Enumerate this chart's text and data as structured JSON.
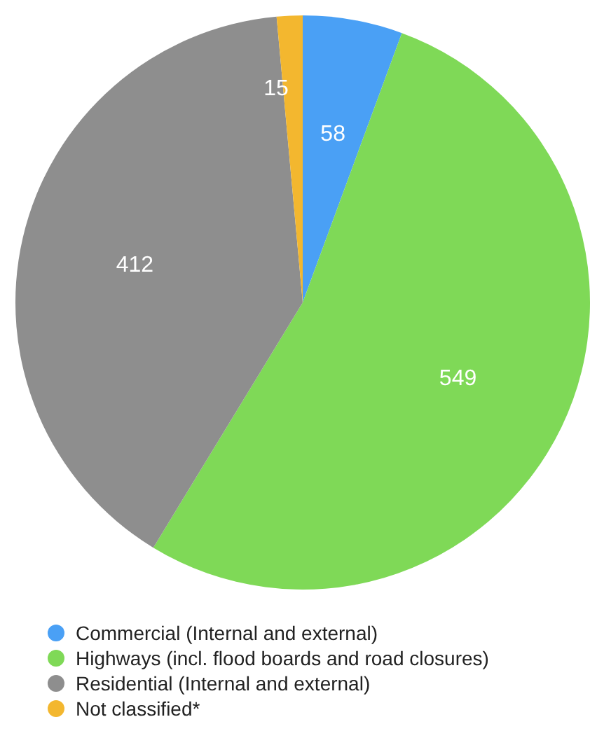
{
  "chart_data": {
    "type": "pie",
    "categories": [
      "Commercial (Internal and external)",
      "Highways (incl. flood boards and road closures)",
      "Residential (Internal and external)",
      "Not classified*"
    ],
    "values": [
      58,
      549,
      412,
      15
    ],
    "colors": [
      "#4aa0f5",
      "#7fd957",
      "#8e8e8e",
      "#f3b72f"
    ],
    "data_labels": true,
    "legend": "bottom"
  }
}
